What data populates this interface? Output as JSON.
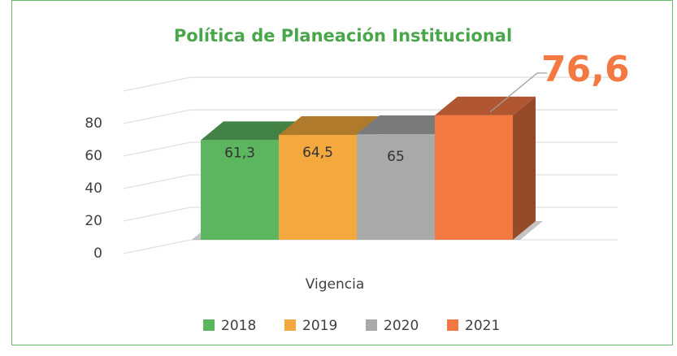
{
  "chart_data": {
    "type": "bar",
    "title": "Política de Planeación Institucional",
    "categories": [
      "Vigencia"
    ],
    "series": [
      {
        "name": "2018",
        "color": "#5cb660",
        "values": [
          61.3
        ],
        "value_labels": [
          "61,3"
        ]
      },
      {
        "name": "2019",
        "color": "#f4a93f",
        "values": [
          64.5
        ],
        "value_labels": [
          "64,5"
        ]
      },
      {
        "name": "2020",
        "color": "#a9a9a9",
        "values": [
          65
        ],
        "value_labels": [
          "65"
        ]
      },
      {
        "name": "2021",
        "color": "#f47842",
        "values": [
          76.6
        ],
        "value_labels": [
          "76,6"
        ]
      }
    ],
    "ylim": [
      0,
      100
    ],
    "yticks": [
      0,
      20,
      40,
      60,
      80
    ],
    "grid": true,
    "legend": "bottom"
  }
}
